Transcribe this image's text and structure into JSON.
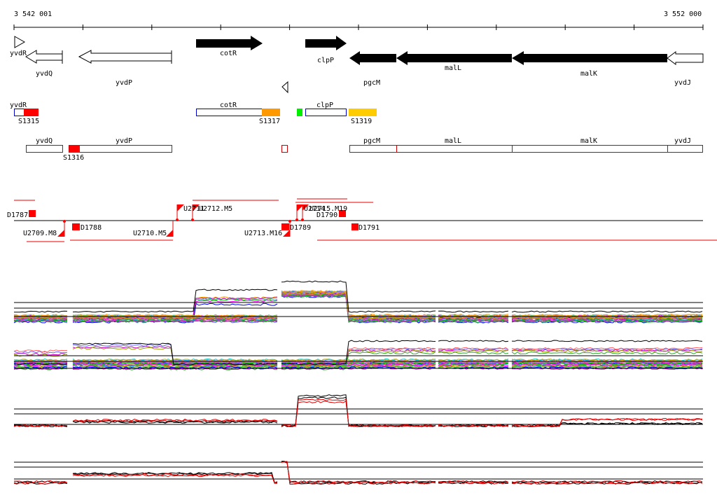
{
  "coords": {
    "start": "3 542 001",
    "end": "3 552 000"
  },
  "genes_top_forward": [
    {
      "label": "cotR"
    },
    {
      "label": "clpP"
    }
  ],
  "genes_top_reverse": [
    {
      "label": "yvdR"
    },
    {
      "label": "yvdQ"
    },
    {
      "label": "yvdP"
    },
    {
      "label": "pgcM"
    },
    {
      "label": "malL"
    },
    {
      "label": "malK"
    },
    {
      "label": "yvdJ"
    }
  ],
  "forward_boxes": [
    {
      "label": "yvdR"
    },
    {
      "label": "cotR"
    },
    {
      "label": "clpP"
    }
  ],
  "reverse_boxes": [
    {
      "label": "yvdQ"
    },
    {
      "label": "yvdP"
    },
    {
      "label": "pgcM"
    },
    {
      "label": "malL"
    },
    {
      "label": "malK"
    },
    {
      "label": "yvdJ"
    }
  ],
  "features_s": [
    {
      "label": "S1315",
      "color": "#ff0000"
    },
    {
      "label": "S1317",
      "color": "#ff9900"
    },
    {
      "label": "S1319",
      "color": "#ffcc00"
    },
    {
      "label": "S1316",
      "color": "#ff0000"
    },
    {
      "color": "#00ee00"
    }
  ],
  "transcripts_upper": [
    {
      "label": "D1787"
    },
    {
      "label": "U2711"
    },
    {
      "label": "U2712.M5"
    },
    {
      "label": "U2714"
    },
    {
      "label": "U2715.M19"
    },
    {
      "label": "D1790"
    }
  ],
  "transcripts_lower": [
    {
      "label": "U2709.M8"
    },
    {
      "label": "D1788"
    },
    {
      "label": "U2710.M5"
    },
    {
      "label": "U2713.M16"
    },
    {
      "label": "D1789"
    },
    {
      "label": "D1791"
    }
  ],
  "colors": {
    "gene_fill": "#000000",
    "forward_box": "#0000cc",
    "reverse_box": "#cc0000",
    "marker": "#ff0000"
  }
}
